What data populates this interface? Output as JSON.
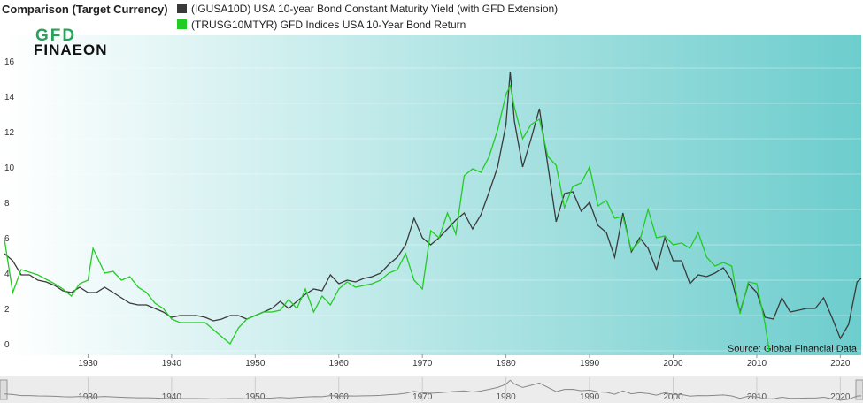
{
  "chart_data": {
    "type": "line",
    "title": "Comparison (Target Currency)",
    "logo": [
      "GFD",
      "FINAEON"
    ],
    "source": "Source: Global Financial Data",
    "xlim": [
      1920,
      2022.5
    ],
    "xticks": [
      1930,
      1940,
      1950,
      1960,
      1970,
      1980,
      1990,
      2000,
      2010,
      2020
    ],
    "ylim": [
      0,
      18
    ],
    "yticks": [
      0,
      2,
      4,
      6,
      8,
      10,
      12,
      14,
      16
    ],
    "grid": true,
    "series": [
      {
        "name": "(IGUSA10D) USA 10-year Bond Constant Maturity Yield (with GFD Extension)",
        "color": "#3a3a3a",
        "x": [
          1920,
          1921,
          1922,
          1923,
          1924,
          1925,
          1926,
          1927,
          1928,
          1929,
          1930,
          1931,
          1932,
          1933,
          1934,
          1935,
          1936,
          1937,
          1938,
          1939,
          1940,
          1941,
          1942,
          1943,
          1944,
          1945,
          1946,
          1947,
          1948,
          1949,
          1950,
          1951,
          1952,
          1953,
          1954,
          1955,
          1956,
          1957,
          1958,
          1959,
          1960,
          1961,
          1962,
          1963,
          1964,
          1965,
          1966,
          1967,
          1968,
          1969,
          1970,
          1971,
          1972,
          1973,
          1974,
          1975,
          1976,
          1977,
          1978,
          1979,
          1980,
          1980.5,
          1981,
          1982,
          1983,
          1984,
          1985,
          1986,
          1987,
          1988,
          1989,
          1990,
          1991,
          1992,
          1993,
          1994,
          1995,
          1996,
          1997,
          1998,
          1999,
          2000,
          2001,
          2002,
          2003,
          2004,
          2005,
          2006,
          2007,
          2008,
          2009,
          2010,
          2011,
          2012,
          2013,
          2014,
          2015,
          2016,
          2017,
          2018,
          2019,
          2020,
          2021,
          2022,
          2022.5
        ],
        "values": [
          5.5,
          5.1,
          4.3,
          4.3,
          4.0,
          3.9,
          3.7,
          3.4,
          3.3,
          3.6,
          3.3,
          3.3,
          3.6,
          3.3,
          3.0,
          2.7,
          2.6,
          2.6,
          2.4,
          2.2,
          1.9,
          2.0,
          2.0,
          2.0,
          1.9,
          1.7,
          1.8,
          2.0,
          2.0,
          1.8,
          2.0,
          2.2,
          2.4,
          2.8,
          2.4,
          2.8,
          3.2,
          3.5,
          3.4,
          4.3,
          3.8,
          4.0,
          3.9,
          4.1,
          4.2,
          4.4,
          4.9,
          5.3,
          6.0,
          7.5,
          6.4,
          6.0,
          6.4,
          6.9,
          7.4,
          7.8,
          6.9,
          7.7,
          9.0,
          10.4,
          12.8,
          15.8,
          13.0,
          10.4,
          12.0,
          13.7,
          10.5,
          7.3,
          8.9,
          9.0,
          7.9,
          8.4,
          7.1,
          6.7,
          5.3,
          7.8,
          5.6,
          6.4,
          5.8,
          4.6,
          6.4,
          5.1,
          5.1,
          3.8,
          4.3,
          4.2,
          4.4,
          4.7,
          4.0,
          2.2,
          3.8,
          3.3,
          1.9,
          1.8,
          3.0,
          2.2,
          2.3,
          2.4,
          2.4,
          3.0,
          1.9,
          0.7,
          1.5,
          3.9,
          4.1
        ]
      },
      {
        "name": "(TRUSG10MTYR) GFD Indices USA 10-Year Bond Return",
        "color": "#22cc22",
        "x": [
          1920,
          1921,
          1922,
          1924,
          1926,
          1927,
          1928,
          1929,
          1930,
          1930.6,
          1932,
          1933,
          1934,
          1935,
          1936,
          1937,
          1938,
          1939,
          1940,
          1941,
          1942,
          1943,
          1944,
          1945,
          1946,
          1947,
          1948,
          1949,
          1950,
          1951,
          1952,
          1953,
          1954,
          1955,
          1956,
          1957,
          1958,
          1959,
          1960,
          1961,
          1962,
          1963,
          1964,
          1965,
          1966,
          1967,
          1968,
          1969,
          1970,
          1971,
          1972,
          1973,
          1974,
          1975,
          1976,
          1977,
          1978,
          1979,
          1980,
          1980.5,
          1981,
          1982,
          1983,
          1984,
          1985,
          1986,
          1987,
          1988,
          1989,
          1990,
          1991,
          1992,
          1993,
          1994,
          1995,
          1996,
          1997,
          1998,
          1999,
          2000,
          2001,
          2002,
          2003,
          2004,
          2005,
          2006,
          2007,
          2008,
          2009,
          2010,
          2011,
          2011.5
        ],
        "values": [
          6.3,
          3.3,
          4.6,
          4.3,
          3.8,
          3.5,
          3.1,
          3.8,
          4.0,
          5.8,
          4.4,
          4.5,
          4.0,
          4.2,
          3.6,
          3.3,
          2.7,
          2.4,
          1.8,
          1.6,
          1.6,
          1.6,
          1.6,
          1.2,
          0.8,
          0.4,
          1.3,
          1.8,
          2.0,
          2.2,
          2.2,
          2.3,
          2.9,
          2.4,
          3.5,
          2.2,
          3.1,
          2.6,
          3.5,
          3.9,
          3.6,
          3.7,
          3.8,
          4.0,
          4.4,
          4.6,
          5.5,
          4.0,
          3.5,
          6.8,
          6.4,
          7.8,
          6.6,
          9.9,
          10.3,
          10.1,
          11.0,
          12.5,
          14.5,
          15.0,
          13.8,
          12.0,
          12.8,
          13.1,
          11.0,
          10.5,
          8.1,
          9.3,
          9.5,
          10.4,
          8.2,
          8.5,
          7.5,
          7.6,
          5.7,
          6.2,
          8.0,
          6.4,
          6.5,
          6.0,
          6.1,
          5.8,
          6.7,
          5.3,
          4.8,
          5.0,
          4.8,
          2.1,
          3.9,
          3.8,
          1.5,
          0.0
        ]
      }
    ]
  }
}
